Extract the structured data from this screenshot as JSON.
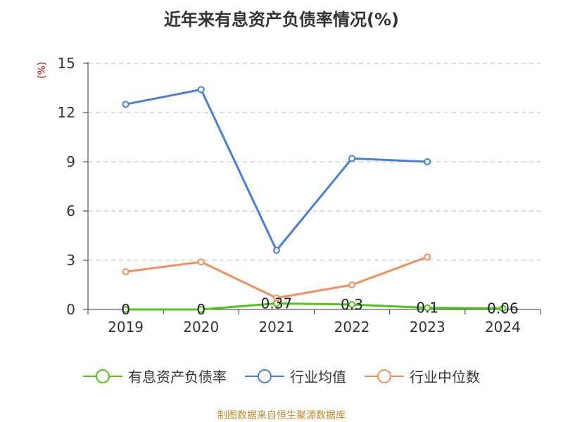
{
  "title": "近年来有息资产负债率情况(%)",
  "unit_label": "(%)",
  "source": "制图数据来自恒生聚源数据库",
  "chart_data": {
    "type": "line",
    "categories": [
      "2019",
      "2020",
      "2021",
      "2022",
      "2023",
      "2024"
    ],
    "ylim": [
      0,
      15
    ],
    "yticks": [
      0,
      3,
      6,
      9,
      12,
      15
    ],
    "grid": true,
    "legend_position": "bottom",
    "series": [
      {
        "name": "有息资产负债率",
        "color": "#52c41a",
        "values": [
          0,
          0,
          0.37,
          0.3,
          0.1,
          0.06
        ],
        "labels": [
          "0",
          "0",
          "0.37",
          "0.3",
          "0.1",
          "0.06"
        ]
      },
      {
        "name": "行业均值",
        "color": "#4a7fd8",
        "values": [
          12.5,
          13.4,
          3.6,
          9.2,
          9.0,
          null
        ]
      },
      {
        "name": "行业中位数",
        "color": "#f28f5c",
        "values": [
          2.3,
          2.9,
          0.7,
          1.5,
          3.2,
          null
        ]
      }
    ]
  }
}
